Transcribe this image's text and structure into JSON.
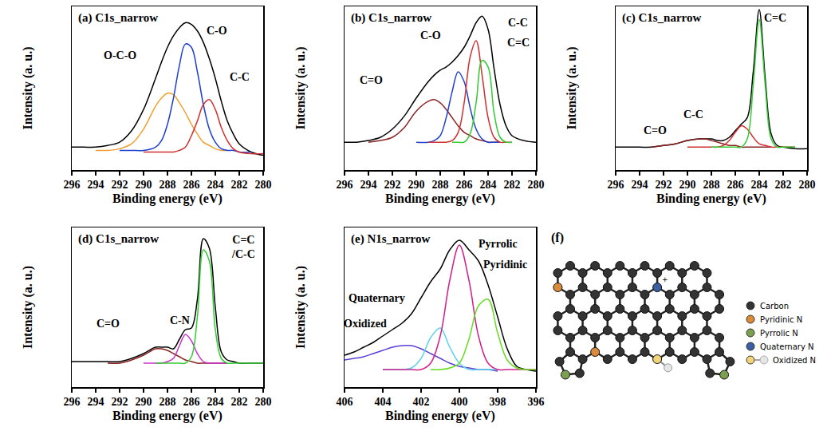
{
  "chart_data": [
    {
      "type": "line",
      "title": "(a) C1s_narrow",
      "xlabel": "Binding energy (eV)",
      "ylabel": "Intensity (a. u.)",
      "x": [
        296,
        295,
        294,
        293,
        292,
        291,
        290,
        289,
        288.5,
        288,
        287.5,
        287,
        286.5,
        286,
        285.5,
        285,
        284.5,
        284,
        283.5,
        283,
        282.5,
        282,
        281,
        280
      ],
      "xlim": [
        296,
        280
      ],
      "xticks": [
        296,
        294,
        292,
        290,
        288,
        286,
        284,
        282,
        280
      ],
      "ylim": [
        0,
        100
      ],
      "tick_labels": "x",
      "series": [
        {
          "color": "#000000",
          "values": [
            14,
            14,
            14,
            15,
            17,
            24,
            37,
            56,
            66,
            75,
            82,
            87,
            90,
            89,
            85,
            78,
            68,
            56,
            42,
            30,
            22,
            16,
            11,
            9
          ]
        },
        {
          "name": "O-C-O",
          "color": "#f0a030",
          "values": [
            null,
            null,
            12,
            12,
            13,
            16,
            25,
            39,
            44,
            47,
            46,
            41,
            35,
            28,
            22,
            17,
            15,
            13,
            12,
            12,
            null,
            null,
            null,
            null
          ]
        },
        {
          "name": "C-O",
          "color": "#1f3fd0",
          "values": [
            null,
            null,
            null,
            null,
            12,
            12,
            12,
            14,
            18,
            28,
            44,
            64,
            77,
            75,
            60,
            40,
            25,
            17,
            13,
            12,
            12,
            11,
            11,
            null
          ]
        },
        {
          "name": "C-C",
          "color": "#d03030",
          "values": [
            null,
            null,
            null,
            null,
            null,
            null,
            11,
            11,
            11,
            11,
            11,
            12,
            14,
            21,
            30,
            40,
            43,
            37,
            26,
            18,
            13,
            11,
            10,
            10
          ]
        }
      ]
    },
    {
      "type": "line",
      "title": "(b) C1s_narrow",
      "xlabel": "Binding energy (eV)",
      "ylabel": "Intensity (a. u.)",
      "x": [
        296,
        295,
        294,
        293,
        292,
        291,
        290,
        289,
        288.5,
        288,
        287.5,
        287,
        286.5,
        286,
        285.5,
        285,
        284.5,
        284,
        283.5,
        283,
        282.5,
        282,
        281,
        280
      ],
      "xlim": [
        296,
        280
      ],
      "xticks": [
        296,
        294,
        292,
        290,
        288,
        286,
        284,
        282,
        280
      ],
      "ylim": [
        0,
        100
      ],
      "tick_labels": "x",
      "series": [
        {
          "color": "#000000",
          "values": [
            17,
            17,
            18,
            20,
            25,
            33,
            44,
            54,
            58,
            61,
            63,
            66,
            70,
            75,
            82,
            90,
            94,
            86,
            62,
            40,
            27,
            21,
            18,
            17
          ]
        },
        {
          "name": "C=O",
          "color": "#8b2323",
          "values": [
            null,
            null,
            17,
            18,
            20,
            26,
            36,
            42,
            43,
            41,
            37,
            32,
            27,
            23,
            21,
            19,
            18,
            17,
            17,
            17,
            null,
            null,
            null,
            null
          ]
        },
        {
          "name": "C-O",
          "color": "#1f3fd0",
          "values": [
            null,
            null,
            null,
            null,
            null,
            null,
            17,
            17,
            18,
            21,
            32,
            48,
            60,
            54,
            38,
            25,
            19,
            17,
            17,
            17,
            null,
            null,
            null,
            null
          ]
        },
        {
          "name": "C-C",
          "color": "#d03030",
          "values": [
            null,
            null,
            null,
            null,
            null,
            null,
            null,
            17,
            17,
            17,
            17,
            18,
            23,
            41,
            69,
            79,
            58,
            32,
            20,
            17,
            17,
            17,
            null,
            null
          ]
        },
        {
          "name": "C=C",
          "color": "#33cc33",
          "values": [
            null,
            null,
            null,
            null,
            null,
            null,
            null,
            null,
            null,
            null,
            null,
            17,
            17,
            17,
            22,
            41,
            67,
            63,
            35,
            20,
            17,
            17,
            null,
            null
          ]
        }
      ]
    },
    {
      "type": "line",
      "title": "(c) C1s_narrow",
      "xlabel": "Binding energy (eV)",
      "ylabel": "Intensity (a. u.)",
      "x": [
        296,
        295,
        294,
        293,
        292,
        291,
        290,
        289,
        288.5,
        288,
        287.5,
        287,
        286.5,
        286,
        285.5,
        285,
        284.5,
        284,
        283.5,
        283,
        282.5,
        282,
        281,
        280
      ],
      "xlim": [
        296,
        280
      ],
      "xticks": [
        296,
        294,
        292,
        290,
        288,
        286,
        284,
        282,
        280
      ],
      "ylim": [
        0,
        100
      ],
      "tick_labels": "x",
      "series": [
        {
          "color": "#000000",
          "values": [
            14,
            14,
            14,
            14,
            15,
            16,
            18,
            19,
            19,
            19,
            18,
            18,
            20,
            24,
            28,
            32,
            60,
            98,
            56,
            22,
            15,
            14,
            13,
            13
          ]
        },
        {
          "name": "C=O",
          "color": "#8b2323",
          "values": [
            null,
            null,
            null,
            14,
            15,
            16,
            18,
            19,
            19,
            18,
            17,
            16,
            15,
            15,
            14,
            14,
            14,
            14,
            14,
            14,
            null,
            null,
            null,
            null
          ]
        },
        {
          "name": "C-C",
          "color": "#d03030",
          "values": [
            null,
            null,
            null,
            null,
            null,
            null,
            14,
            14,
            14,
            14,
            14,
            15,
            18,
            23,
            27,
            25,
            20,
            16,
            15,
            14,
            14,
            14,
            14,
            null
          ]
        },
        {
          "name": "C=C",
          "color": "#33cc33",
          "values": [
            null,
            null,
            null,
            null,
            null,
            null,
            null,
            null,
            null,
            14,
            14,
            14,
            14,
            14,
            14,
            19,
            52,
            92,
            52,
            19,
            14,
            14,
            14,
            null
          ]
        }
      ]
    },
    {
      "type": "line",
      "title": "(d) C1s_narrow",
      "xlabel": "Binding energy (eV)",
      "ylabel": "Intensity (a. u.)",
      "x": [
        296,
        295,
        294,
        293,
        292,
        291,
        290,
        289,
        288.5,
        288,
        287.5,
        287,
        286.5,
        286,
        285.5,
        285,
        284.5,
        284,
        283.5,
        283,
        282.5,
        282,
        281,
        280
      ],
      "xlim": [
        296,
        280
      ],
      "xticks": [
        296,
        294,
        292,
        290,
        288,
        286,
        284,
        282,
        280
      ],
      "ylim": [
        0,
        100
      ],
      "tick_labels": "x",
      "series": [
        {
          "color": "#000000",
          "values": [
            16,
            16,
            16,
            16,
            16,
            18,
            21,
            25,
            25,
            25,
            24,
            30,
            36,
            37,
            55,
            93,
            87,
            50,
            22,
            17,
            16,
            15,
            15,
            15
          ]
        },
        {
          "name": "C=O",
          "color": "#8b2323",
          "values": [
            null,
            null,
            null,
            15,
            15,
            17,
            20,
            24,
            24,
            23,
            21,
            19,
            17,
            16,
            15,
            15,
            15,
            15,
            15,
            15,
            null,
            null,
            null,
            null
          ]
        },
        {
          "name": "C-N",
          "color": "#cc33cc",
          "values": [
            null,
            null,
            null,
            null,
            null,
            null,
            15,
            15,
            15,
            16,
            18,
            26,
            33,
            29,
            21,
            16,
            15,
            15,
            15,
            15,
            null,
            null,
            null,
            null
          ]
        },
        {
          "name": "C=C/C-C",
          "color": "#33cc33",
          "values": [
            null,
            null,
            null,
            null,
            null,
            null,
            null,
            15,
            15,
            15,
            15,
            15,
            15,
            19,
            44,
            86,
            79,
            36,
            18,
            15,
            15,
            15,
            15,
            15
          ]
        }
      ]
    },
    {
      "type": "line",
      "title": "(e) N1s_narrow",
      "xlabel": "Binding energy (eV)",
      "ylabel": "Intensity (a. u.)",
      "x": [
        406,
        405.5,
        405,
        404.5,
        404,
        403.5,
        403,
        402.5,
        402,
        401.5,
        401,
        400.5,
        400,
        399.5,
        399,
        398.5,
        398,
        397.5,
        397,
        396.5,
        396
      ],
      "xlim": [
        406,
        396
      ],
      "xticks": [
        406,
        404,
        402,
        400,
        398,
        396
      ],
      "ylim": [
        0,
        100
      ],
      "tick_labels": "x",
      "series": [
        {
          "color": "#000000",
          "values": [
            20,
            22,
            25,
            28,
            32,
            36,
            40,
            46,
            56,
            66,
            74,
            86,
            92,
            86,
            79,
            64,
            44,
            24,
            13,
            11,
            10
          ]
        },
        {
          "name": "Oxidized",
          "color": "#5b3fd6",
          "values": [
            17,
            18,
            19,
            21,
            23,
            25,
            26,
            26,
            24,
            21,
            18,
            15,
            13,
            12,
            11,
            11,
            10,
            null,
            null,
            null,
            null
          ]
        },
        {
          "name": "Quaternary",
          "color": "#5bd3f0",
          "values": [
            null,
            null,
            null,
            null,
            11,
            11,
            11,
            12,
            18,
            31,
            37,
            25,
            15,
            11,
            11,
            11,
            11,
            null,
            null,
            null,
            null
          ]
        },
        {
          "name": "Pyrrolic",
          "color": "#d0208a",
          "values": [
            null,
            null,
            null,
            null,
            11,
            11,
            11,
            11,
            11,
            15,
            32,
            67,
            89,
            67,
            32,
            15,
            11,
            11,
            11,
            11,
            11
          ]
        },
        {
          "name": "Pyridinic",
          "color": "#66dd22",
          "values": [
            null,
            null,
            null,
            null,
            null,
            null,
            null,
            null,
            null,
            11,
            11,
            12,
            15,
            30,
            51,
            55,
            34,
            17,
            12,
            11,
            11
          ]
        }
      ]
    }
  ],
  "diagram": {
    "panel_label": "(f)",
    "quaternary_charge": "+",
    "legend": [
      {
        "label": "Carbon",
        "color": "#333333"
      },
      {
        "label": "Pyridinic N",
        "color": "#d98a3a"
      },
      {
        "label": "Pyrrolic N",
        "color": "#7aa050"
      },
      {
        "label": "Quaternary N",
        "color": "#3c5fa0"
      },
      {
        "label": "Oxidized N",
        "color": "#f2d57a"
      }
    ]
  }
}
